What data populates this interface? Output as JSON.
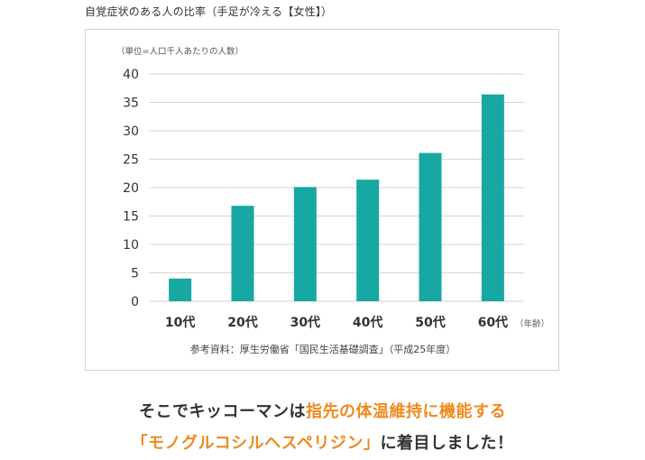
{
  "colors": {
    "bar": "#17a8a3",
    "grid": "#d6d6d6",
    "accent": "#ef8a1f",
    "text": "#333333"
  },
  "chart_data": {
    "type": "bar",
    "title": "自覚症状のある人の比率（手足が冷える【女性】）",
    "unit_label": "（単位=人口千人あたりの人数）",
    "categories": [
      "10代",
      "20代",
      "30代",
      "40代",
      "50代",
      "60代"
    ],
    "values": [
      4.0,
      16.8,
      20.1,
      21.4,
      26.1,
      36.4
    ],
    "y_ticks": [
      "0",
      "5",
      "10",
      "15",
      "20",
      "25",
      "30",
      "35",
      "40"
    ],
    "ylim": [
      0,
      40
    ],
    "x_unit_label": "（年齢）",
    "source": "参考資料：厚生労働省「国民生活基礎調査」（平成25年度）",
    "grid": true
  },
  "headline": {
    "line1_part1": "そこでキッコーマンは",
    "line1_part2": "指先の体温維持に機能する",
    "line2_part1": "「モノグルコシルヘスペリジン」",
    "line2_part2": "に着目しました！"
  }
}
